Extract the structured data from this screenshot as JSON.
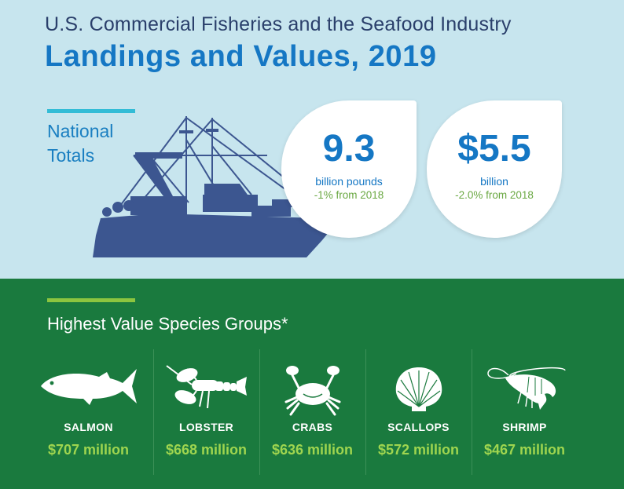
{
  "header": {
    "subtitle": "U.S. Commercial Fisheries and the Seafood Industry",
    "title": "Landings and Values, 2019"
  },
  "national_totals": {
    "label_line1": "National",
    "label_line2": "Totals",
    "landings": {
      "value": "9.3",
      "unit": "billion pounds",
      "change": "-1% from 2018"
    },
    "values": {
      "value": "$5.5",
      "unit": "billion",
      "change": "-2.0% from 2018"
    }
  },
  "species_section": {
    "heading": "Highest Value Species Groups*",
    "items": [
      {
        "name": "SALMON",
        "value": "$707 million",
        "icon": "salmon-icon"
      },
      {
        "name": "LOBSTER",
        "value": "$668 million",
        "icon": "lobster-icon"
      },
      {
        "name": "CRABS",
        "value": "$636 million",
        "icon": "crab-icon"
      },
      {
        "name": "SCALLOPS",
        "value": "$572 million",
        "icon": "scallop-icon"
      },
      {
        "name": "SHRIMP",
        "value": "$467 million",
        "icon": "shrimp-icon"
      }
    ]
  },
  "colors": {
    "sky": "#c7e5ee",
    "green": "#1a7a3e",
    "title_blue": "#1577c4",
    "boat_navy": "#3c5690",
    "value_green": "#9fd54f"
  }
}
